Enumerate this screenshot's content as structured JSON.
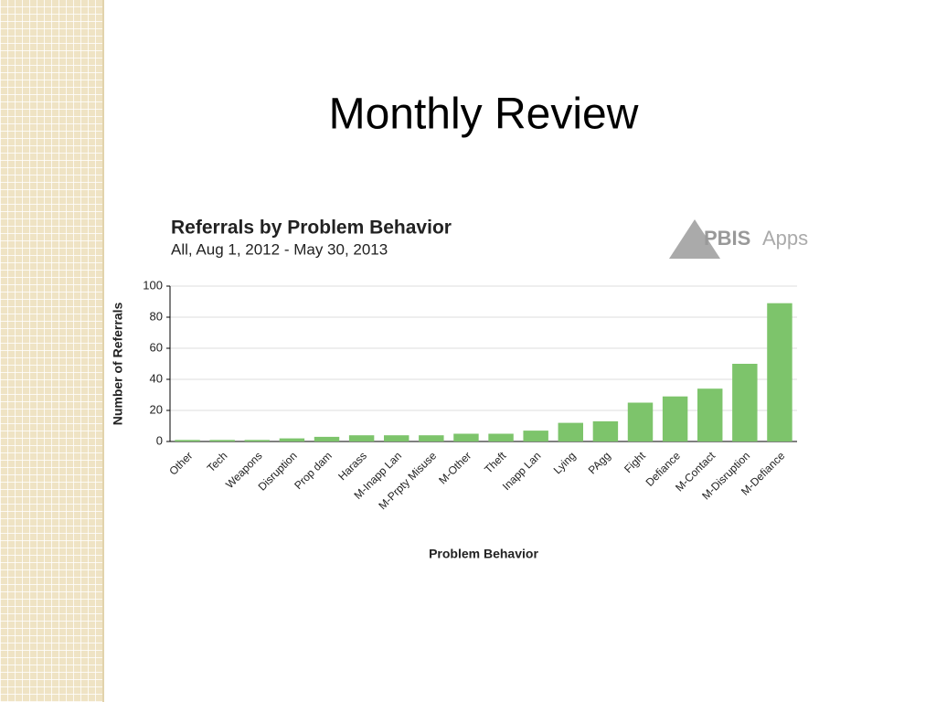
{
  "slide": {
    "title": "Monthly Review"
  },
  "logo": {
    "bold": "PBIS",
    "light": "Apps"
  },
  "chart_data": {
    "type": "bar",
    "title": "Referrals by Problem Behavior",
    "subtitle": "All, Aug 1, 2012 - May 30, 2013",
    "x_label": "Problem Behavior",
    "y_label": "Number of Referrals",
    "categories": [
      "Other",
      "Tech",
      "Weapons",
      "Disruption",
      "Prop dam",
      "Harass",
      "M-Inapp Lan",
      "M-Prpty Misuse",
      "M-Other",
      "Theft",
      "Inapp Lan",
      "Lying",
      "PAgg",
      "Fight",
      "Defiance",
      "M-Contact",
      "M-Disruption",
      "M-Defiance"
    ],
    "values": [
      1,
      1,
      1,
      2,
      3,
      4,
      4,
      4,
      5,
      5,
      7,
      12,
      13,
      25,
      29,
      34,
      50,
      89
    ],
    "color": "#7dc46b",
    "ylim": [
      0,
      100
    ],
    "yticks": [
      0,
      20,
      40,
      60,
      80,
      100
    ],
    "grid": true
  }
}
